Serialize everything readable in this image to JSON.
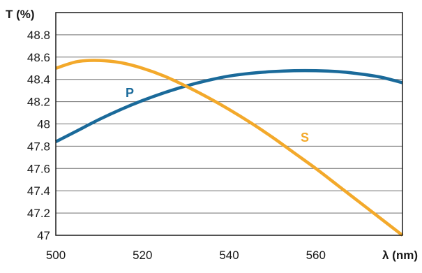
{
  "chart_data": {
    "type": "line",
    "title": "",
    "xlabel": "λ (nm)",
    "ylabel": "T (%)",
    "xlim": [
      500,
      580
    ],
    "ylim": [
      47,
      49
    ],
    "x_ticks": [
      "500",
      "520",
      "540",
      "560"
    ],
    "y_ticks": [
      "47",
      "47.2",
      "47.4",
      "47.6",
      "47.8",
      "48",
      "48.2",
      "48.4",
      "48.6",
      "48.8"
    ],
    "grid": true,
    "legend": "none",
    "series": [
      {
        "name": "P",
        "color": "#1a6a9a",
        "x": [
          500,
          505,
          510,
          515,
          520,
          525,
          530,
          535,
          540,
          545,
          550,
          555,
          560,
          565,
          570,
          575,
          580
        ],
        "y": [
          47.84,
          47.94,
          48.04,
          48.13,
          48.21,
          48.28,
          48.34,
          48.39,
          48.43,
          48.455,
          48.47,
          48.478,
          48.478,
          48.47,
          48.45,
          48.42,
          48.37
        ]
      },
      {
        "name": "S",
        "color": "#f3a92b",
        "x": [
          500,
          505,
          510,
          515,
          520,
          525,
          530,
          535,
          540,
          545,
          550,
          555,
          560,
          565,
          570,
          575,
          580
        ],
        "y": [
          48.5,
          48.56,
          48.57,
          48.55,
          48.5,
          48.43,
          48.34,
          48.24,
          48.13,
          48.01,
          47.88,
          47.74,
          47.6,
          47.45,
          47.3,
          47.15,
          47.0
        ]
      }
    ]
  }
}
